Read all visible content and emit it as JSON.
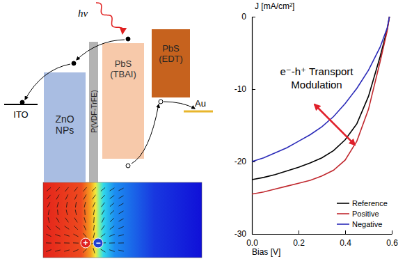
{
  "chart_data": {
    "type": "line",
    "x_label": "Bias [V]",
    "y_label": "J [mA/cm²]",
    "annotation": "e⁻-h⁺ Transport Modulation",
    "x": [
      0,
      0.05,
      0.1,
      0.15,
      0.2,
      0.25,
      0.3,
      0.35,
      0.4,
      0.45,
      0.5,
      0.55,
      0.58,
      0.59
    ],
    "series": [
      {
        "name": "Reference",
        "color": "#000000",
        "values": [
          -22.5,
          -22.2,
          -21.8,
          -21.3,
          -20.8,
          -20.2,
          -19.5,
          -18.5,
          -17.0,
          -14.8,
          -11.0,
          -5.5,
          -1.8,
          0
        ]
      },
      {
        "name": "Positive",
        "color": "#c0282e",
        "values": [
          -24.5,
          -24.2,
          -23.8,
          -23.4,
          -23.0,
          -22.6,
          -22.0,
          -21.2,
          -19.8,
          -17.2,
          -12.8,
          -6.2,
          -2.0,
          0
        ]
      },
      {
        "name": "Negative",
        "color": "#2a2ab8",
        "values": [
          -20.0,
          -19.5,
          -18.8,
          -18.1,
          -17.2,
          -16.3,
          -15.2,
          -13.8,
          -12.0,
          -9.9,
          -7.4,
          -4.2,
          -1.6,
          0
        ]
      }
    ],
    "xlim": [
      0,
      0.6
    ],
    "ylim": [
      -30,
      0
    ],
    "xticks": [
      {
        "value": 0,
        "label": "0.0"
      },
      0.2,
      0.4,
      0.6
    ],
    "yticks": [
      -30,
      -20,
      -10,
      0
    ],
    "legend": "lower right",
    "grid": false
  },
  "diagram": {
    "photon": "hν",
    "electrode_left": "ITO",
    "electrode_right": "Au",
    "layers": [
      "ZnO NPs",
      "P(VDF-TrFE)",
      "PbS (TBAI)",
      "PbS (EDT)"
    ],
    "charges": [
      "+",
      "−"
    ]
  }
}
